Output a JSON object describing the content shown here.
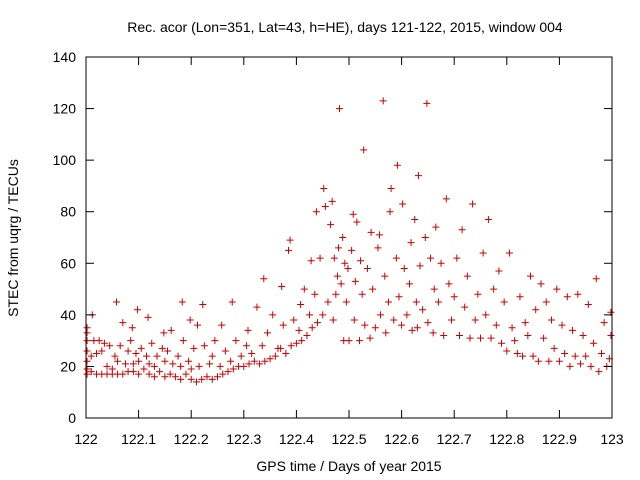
{
  "chart_data": {
    "type": "scatter",
    "title": "Rec. acor (Lon=351, Lat=43, h=HE), days 121-122, 2015, window 004",
    "xlabel": "GPS time / Days of year 2015",
    "ylabel": "STEC from uqrg / TECUs",
    "xlim": [
      122,
      123
    ],
    "ylim": [
      0,
      140
    ],
    "xticks": [
      "122",
      "122.1",
      "122.2",
      "122.3",
      "122.4",
      "122.5",
      "122.6",
      "122.7",
      "122.8",
      "122.9",
      "123"
    ],
    "yticks": [
      "0",
      "20",
      "40",
      "60",
      "80",
      "100",
      "120",
      "140"
    ],
    "grid": false,
    "series": [
      {
        "name": "STEC",
        "color": "#cc0000",
        "marker": "plus",
        "points": [
          [
            122.002,
            17
          ],
          [
            122.002,
            19
          ],
          [
            122.002,
            22
          ],
          [
            122.002,
            26
          ],
          [
            122.002,
            30
          ],
          [
            122.002,
            33
          ],
          [
            122.002,
            35
          ],
          [
            122.01,
            18
          ],
          [
            122.01,
            24
          ],
          [
            122.012,
            40
          ],
          [
            122.015,
            30
          ],
          [
            122.02,
            17
          ],
          [
            122.02,
            25
          ],
          [
            122.025,
            30
          ],
          [
            122.03,
            17
          ],
          [
            122.03,
            26
          ],
          [
            122.035,
            29
          ],
          [
            122.04,
            17
          ],
          [
            122.04,
            20
          ],
          [
            122.045,
            28
          ],
          [
            122.05,
            17
          ],
          [
            122.05,
            19
          ],
          [
            122.055,
            24
          ],
          [
            122.058,
            45
          ],
          [
            122.06,
            17
          ],
          [
            122.06,
            22
          ],
          [
            122.065,
            28
          ],
          [
            122.07,
            37
          ],
          [
            122.07,
            17
          ],
          [
            122.075,
            21
          ],
          [
            122.08,
            18
          ],
          [
            122.08,
            26
          ],
          [
            122.085,
            30
          ],
          [
            122.088,
            35
          ],
          [
            122.09,
            18
          ],
          [
            122.09,
            21
          ],
          [
            122.095,
            25
          ],
          [
            122.098,
            42
          ],
          [
            122.1,
            17
          ],
          [
            122.1,
            22
          ],
          [
            122.105,
            27
          ],
          [
            122.11,
            19
          ],
          [
            122.115,
            24
          ],
          [
            122.118,
            39
          ],
          [
            122.12,
            17
          ],
          [
            122.12,
            21
          ],
          [
            122.125,
            29
          ],
          [
            122.13,
            16
          ],
          [
            122.13,
            20
          ],
          [
            122.135,
            24
          ],
          [
            122.14,
            18
          ],
          [
            122.145,
            27
          ],
          [
            122.148,
            33
          ],
          [
            122.15,
            16
          ],
          [
            122.15,
            22
          ],
          [
            122.155,
            26
          ],
          [
            122.16,
            17
          ],
          [
            122.162,
            34
          ],
          [
            122.165,
            21
          ],
          [
            122.17,
            16
          ],
          [
            122.175,
            24
          ],
          [
            122.18,
            15
          ],
          [
            122.18,
            20
          ],
          [
            122.183,
            45
          ],
          [
            122.185,
            30
          ],
          [
            122.19,
            17
          ],
          [
            122.195,
            22
          ],
          [
            122.198,
            38
          ],
          [
            122.2,
            15
          ],
          [
            122.2,
            19
          ],
          [
            122.205,
            27
          ],
          [
            122.21,
            14
          ],
          [
            122.212,
            36
          ],
          [
            122.215,
            20
          ],
          [
            122.22,
            15
          ],
          [
            122.222,
            44
          ],
          [
            122.225,
            28
          ],
          [
            122.23,
            16
          ],
          [
            122.235,
            21
          ],
          [
            122.24,
            15
          ],
          [
            122.24,
            24
          ],
          [
            122.245,
            30
          ],
          [
            122.25,
            16
          ],
          [
            122.255,
            20
          ],
          [
            122.258,
            36
          ],
          [
            122.26,
            17
          ],
          [
            122.265,
            26
          ],
          [
            122.27,
            18
          ],
          [
            122.275,
            22
          ],
          [
            122.278,
            45
          ],
          [
            122.28,
            19
          ],
          [
            122.285,
            30
          ],
          [
            122.29,
            20
          ],
          [
            122.295,
            24
          ],
          [
            122.3,
            20
          ],
          [
            122.305,
            28
          ],
          [
            122.308,
            34
          ],
          [
            122.31,
            21
          ],
          [
            122.315,
            25
          ],
          [
            122.32,
            22
          ],
          [
            122.325,
            43
          ],
          [
            122.33,
            21
          ],
          [
            122.335,
            28
          ],
          [
            122.338,
            54
          ],
          [
            122.34,
            22
          ],
          [
            122.345,
            33
          ],
          [
            122.35,
            23
          ],
          [
            122.355,
            40
          ],
          [
            122.36,
            24
          ],
          [
            122.365,
            27
          ],
          [
            122.37,
            27
          ],
          [
            122.372,
            51
          ],
          [
            122.375,
            36
          ],
          [
            122.38,
            25
          ],
          [
            122.385,
            65
          ],
          [
            122.388,
            69
          ],
          [
            122.39,
            28
          ],
          [
            122.395,
            38
          ],
          [
            122.4,
            29
          ],
          [
            122.405,
            34
          ],
          [
            122.408,
            44
          ],
          [
            122.41,
            30
          ],
          [
            122.415,
            50
          ],
          [
            122.42,
            32
          ],
          [
            122.425,
            40
          ],
          [
            122.428,
            61
          ],
          [
            122.43,
            35
          ],
          [
            122.435,
            48
          ],
          [
            122.438,
            80
          ],
          [
            122.44,
            37
          ],
          [
            122.445,
            62
          ],
          [
            122.45,
            40
          ],
          [
            122.452,
            89
          ],
          [
            122.455,
            82
          ],
          [
            122.46,
            45
          ],
          [
            122.465,
            75
          ],
          [
            122.468,
            84
          ],
          [
            122.47,
            38
          ],
          [
            122.472,
            62
          ],
          [
            122.475,
            48
          ],
          [
            122.478,
            55
          ],
          [
            122.48,
            66
          ],
          [
            122.482,
            120
          ],
          [
            122.485,
            52
          ],
          [
            122.488,
            70
          ],
          [
            122.49,
            30
          ],
          [
            122.492,
            60
          ],
          [
            122.495,
            45
          ],
          [
            122.498,
            58
          ],
          [
            122.5,
            30
          ],
          [
            122.505,
            65
          ],
          [
            122.508,
            79
          ],
          [
            122.51,
            38
          ],
          [
            122.512,
            53
          ],
          [
            122.515,
            76
          ],
          [
            122.52,
            30
          ],
          [
            122.522,
            61
          ],
          [
            122.525,
            48
          ],
          [
            122.528,
            104
          ],
          [
            122.53,
            36
          ],
          [
            122.535,
            58
          ],
          [
            122.54,
            31
          ],
          [
            122.542,
            72
          ],
          [
            122.545,
            50
          ],
          [
            122.55,
            35
          ],
          [
            122.555,
            66
          ],
          [
            122.558,
            71
          ],
          [
            122.56,
            40
          ],
          [
            122.565,
            123
          ],
          [
            122.568,
            55
          ],
          [
            122.57,
            33
          ],
          [
            122.575,
            45
          ],
          [
            122.578,
            80
          ],
          [
            122.58,
            89
          ],
          [
            122.585,
            38
          ],
          [
            122.59,
            62
          ],
          [
            122.592,
            98
          ],
          [
            122.595,
            47
          ],
          [
            122.6,
            36
          ],
          [
            122.602,
            83
          ],
          [
            122.605,
            58
          ],
          [
            122.61,
            40
          ],
          [
            122.615,
            52
          ],
          [
            122.618,
            68
          ],
          [
            122.62,
            34
          ],
          [
            122.625,
            77
          ],
          [
            122.628,
            45
          ],
          [
            122.63,
            35
          ],
          [
            122.632,
            94
          ],
          [
            122.635,
            59
          ],
          [
            122.64,
            42
          ],
          [
            122.645,
            70
          ],
          [
            122.648,
            122
          ],
          [
            122.65,
            37
          ],
          [
            122.655,
            62
          ],
          [
            122.66,
            33
          ],
          [
            122.662,
            50
          ],
          [
            122.665,
            74
          ],
          [
            122.67,
            45
          ],
          [
            122.675,
            60
          ],
          [
            122.68,
            32
          ],
          [
            122.685,
            85
          ],
          [
            122.69,
            52
          ],
          [
            122.695,
            38
          ],
          [
            122.7,
            47
          ],
          [
            122.705,
            62
          ],
          [
            122.71,
            32
          ],
          [
            122.715,
            73
          ],
          [
            122.72,
            43
          ],
          [
            122.725,
            55
          ],
          [
            122.73,
            31
          ],
          [
            122.735,
            83
          ],
          [
            122.74,
            38
          ],
          [
            122.745,
            48
          ],
          [
            122.75,
            31
          ],
          [
            122.755,
            64
          ],
          [
            122.76,
            40
          ],
          [
            122.765,
            77
          ],
          [
            122.77,
            31
          ],
          [
            122.775,
            50
          ],
          [
            122.78,
            36
          ],
          [
            122.785,
            57
          ],
          [
            122.79,
            29
          ],
          [
            122.795,
            45
          ],
          [
            122.8,
            26
          ],
          [
            122.805,
            64
          ],
          [
            122.81,
            35
          ],
          [
            122.815,
            30
          ],
          [
            122.82,
            25
          ],
          [
            122.825,
            47
          ],
          [
            122.83,
            24
          ],
          [
            122.835,
            37
          ],
          [
            122.84,
            32
          ],
          [
            122.845,
            55
          ],
          [
            122.85,
            24
          ],
          [
            122.855,
            42
          ],
          [
            122.86,
            22
          ],
          [
            122.865,
            52
          ],
          [
            122.87,
            31
          ],
          [
            122.875,
            45
          ],
          [
            122.88,
            22
          ],
          [
            122.885,
            38
          ],
          [
            122.89,
            27
          ],
          [
            122.895,
            50
          ],
          [
            122.9,
            22
          ],
          [
            122.905,
            36
          ],
          [
            122.91,
            25
          ],
          [
            122.915,
            47
          ],
          [
            122.92,
            20
          ],
          [
            122.925,
            34
          ],
          [
            122.93,
            24
          ],
          [
            122.935,
            48
          ],
          [
            122.94,
            21
          ],
          [
            122.945,
            32
          ],
          [
            122.95,
            24
          ],
          [
            122.955,
            44
          ],
          [
            122.96,
            20
          ],
          [
            122.965,
            29
          ],
          [
            122.97,
            54
          ],
          [
            122.975,
            18
          ],
          [
            122.98,
            25
          ],
          [
            122.985,
            37
          ],
          [
            122.99,
            20
          ],
          [
            122.995,
            23
          ],
          [
            122.998,
            32
          ],
          [
            122.998,
            41
          ]
        ]
      }
    ]
  }
}
